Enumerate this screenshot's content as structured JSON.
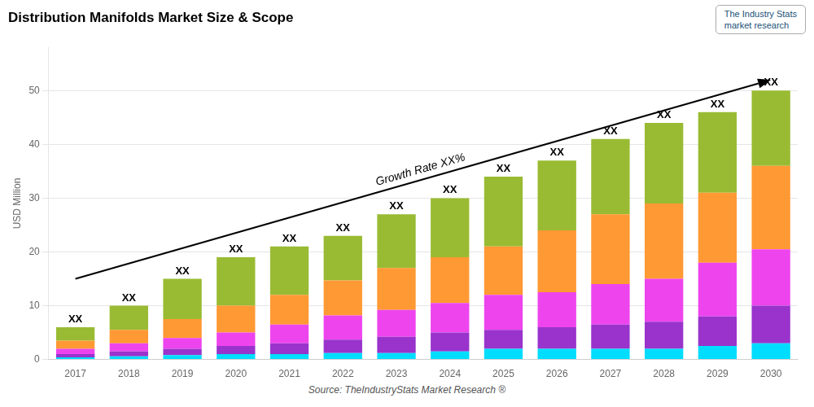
{
  "chart_data": {
    "type": "bar",
    "stacked": true,
    "title": "Distribution Manifolds Market Size & Scope",
    "ylabel": "USD Million",
    "source": "Source: TheIndustryStats Market Research ®",
    "logo": [
      "The Industry Stats",
      "market research"
    ],
    "categories": [
      "2017",
      "2018",
      "2019",
      "2020",
      "2021",
      "2022",
      "2023",
      "2024",
      "2025",
      "2026",
      "2027",
      "2028",
      "2029",
      "2030"
    ],
    "series": [
      {
        "color": "#00ddff",
        "values": [
          0.4,
          0.6,
          0.8,
          1.0,
          1.0,
          1.2,
          1.2,
          1.5,
          2.0,
          2.0,
          2.0,
          2.0,
          2.5,
          3.0
        ]
      },
      {
        "color": "#9933cc",
        "values": [
          0.6,
          0.9,
          1.2,
          1.5,
          2.0,
          2.5,
          3.0,
          3.5,
          3.5,
          4.0,
          4.5,
          5.0,
          5.5,
          7.0
        ]
      },
      {
        "color": "#ee44ee",
        "values": [
          1.0,
          1.5,
          2.0,
          2.5,
          3.5,
          4.5,
          5.0,
          5.5,
          6.5,
          6.5,
          7.5,
          8.0,
          10.0,
          10.5
        ]
      },
      {
        "color": "#ff9933",
        "values": [
          1.5,
          2.5,
          3.5,
          5.0,
          5.5,
          6.5,
          7.8,
          8.5,
          9.0,
          11.5,
          13.0,
          14.0,
          13.0,
          15.5
        ]
      },
      {
        "color": "#99bb33",
        "values": [
          2.5,
          4.5,
          7.5,
          9.0,
          9.0,
          8.3,
          10.0,
          11.0,
          13.0,
          13.0,
          14.0,
          15.0,
          15.0,
          14.0
        ]
      }
    ],
    "ylim": [
      0,
      58
    ],
    "yticks": [
      0,
      10,
      20,
      30,
      40,
      50
    ],
    "grid": true,
    "annotations": [
      {
        "text": "XX",
        "x": "2017",
        "y": 6
      },
      {
        "text": "XX",
        "x": "2018",
        "y": 10
      },
      {
        "text": "XX",
        "x": "2019",
        "y": 15
      },
      {
        "text": "XX",
        "x": "2020",
        "y": 19
      },
      {
        "text": "XX",
        "x": "2021",
        "y": 21
      },
      {
        "text": "XX",
        "x": "2022",
        "y": 23
      },
      {
        "text": "XX",
        "x": "2023",
        "y": 27
      },
      {
        "text": "XX",
        "x": "2024",
        "y": 30
      },
      {
        "text": "XX",
        "x": "2025",
        "y": 34
      },
      {
        "text": "XX",
        "x": "2026",
        "y": 37
      },
      {
        "text": "XX",
        "x": "2027",
        "y": 41
      },
      {
        "text": "XX",
        "x": "2028",
        "y": 44
      },
      {
        "text": "XX",
        "x": "2029",
        "y": 46
      },
      {
        "text": "XX",
        "x": "2030",
        "y": 50
      }
    ],
    "arrow": {
      "from": {
        "x": "2017",
        "y": 15
      },
      "to": {
        "x": "2030",
        "y": 52
      },
      "label": "Growth Rate XX%"
    }
  }
}
